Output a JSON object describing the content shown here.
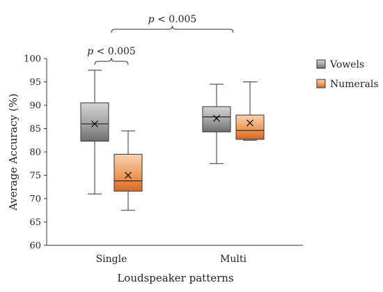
{
  "chart_data": {
    "type": "boxplot",
    "xlabel": "Loudspeaker patterns",
    "ylabel": "Average Accuracy (%)",
    "ylim": [
      60,
      100
    ],
    "yticks": [
      60,
      65,
      70,
      75,
      80,
      85,
      90,
      95,
      100
    ],
    "grid": false,
    "legend_position": "top-right",
    "categories": [
      "Single",
      "Multi"
    ],
    "series": [
      {
        "name": "Vowels",
        "color": "#8c8c8c",
        "boxes": [
          {
            "category": "Single",
            "min": 71.0,
            "q1": 82.3,
            "median": 86.0,
            "q3": 90.5,
            "max": 97.5,
            "mean": 86.0
          },
          {
            "category": "Multi",
            "min": 77.5,
            "q1": 84.3,
            "median": 87.5,
            "q3": 89.7,
            "max": 94.5,
            "mean": 87.2
          }
        ]
      },
      {
        "name": "Numerals",
        "color": "#e8782e",
        "boxes": [
          {
            "category": "Single",
            "min": 67.5,
            "q1": 71.6,
            "median": 73.8,
            "q3": 79.5,
            "max": 84.5,
            "mean": 75.0
          },
          {
            "category": "Multi",
            "min": 82.5,
            "q1": 82.7,
            "median": 84.6,
            "q3": 87.9,
            "max": 95.0,
            "mean": 86.2
          }
        ]
      }
    ],
    "annotations": [
      {
        "label_prefix": "p",
        "label_text": " < 0.005",
        "between": [
          "Single Vowels",
          "Single Numerals"
        ]
      },
      {
        "label_prefix": "p",
        "label_text": " < 0.005",
        "between": [
          "Single",
          "Multi"
        ]
      }
    ]
  }
}
